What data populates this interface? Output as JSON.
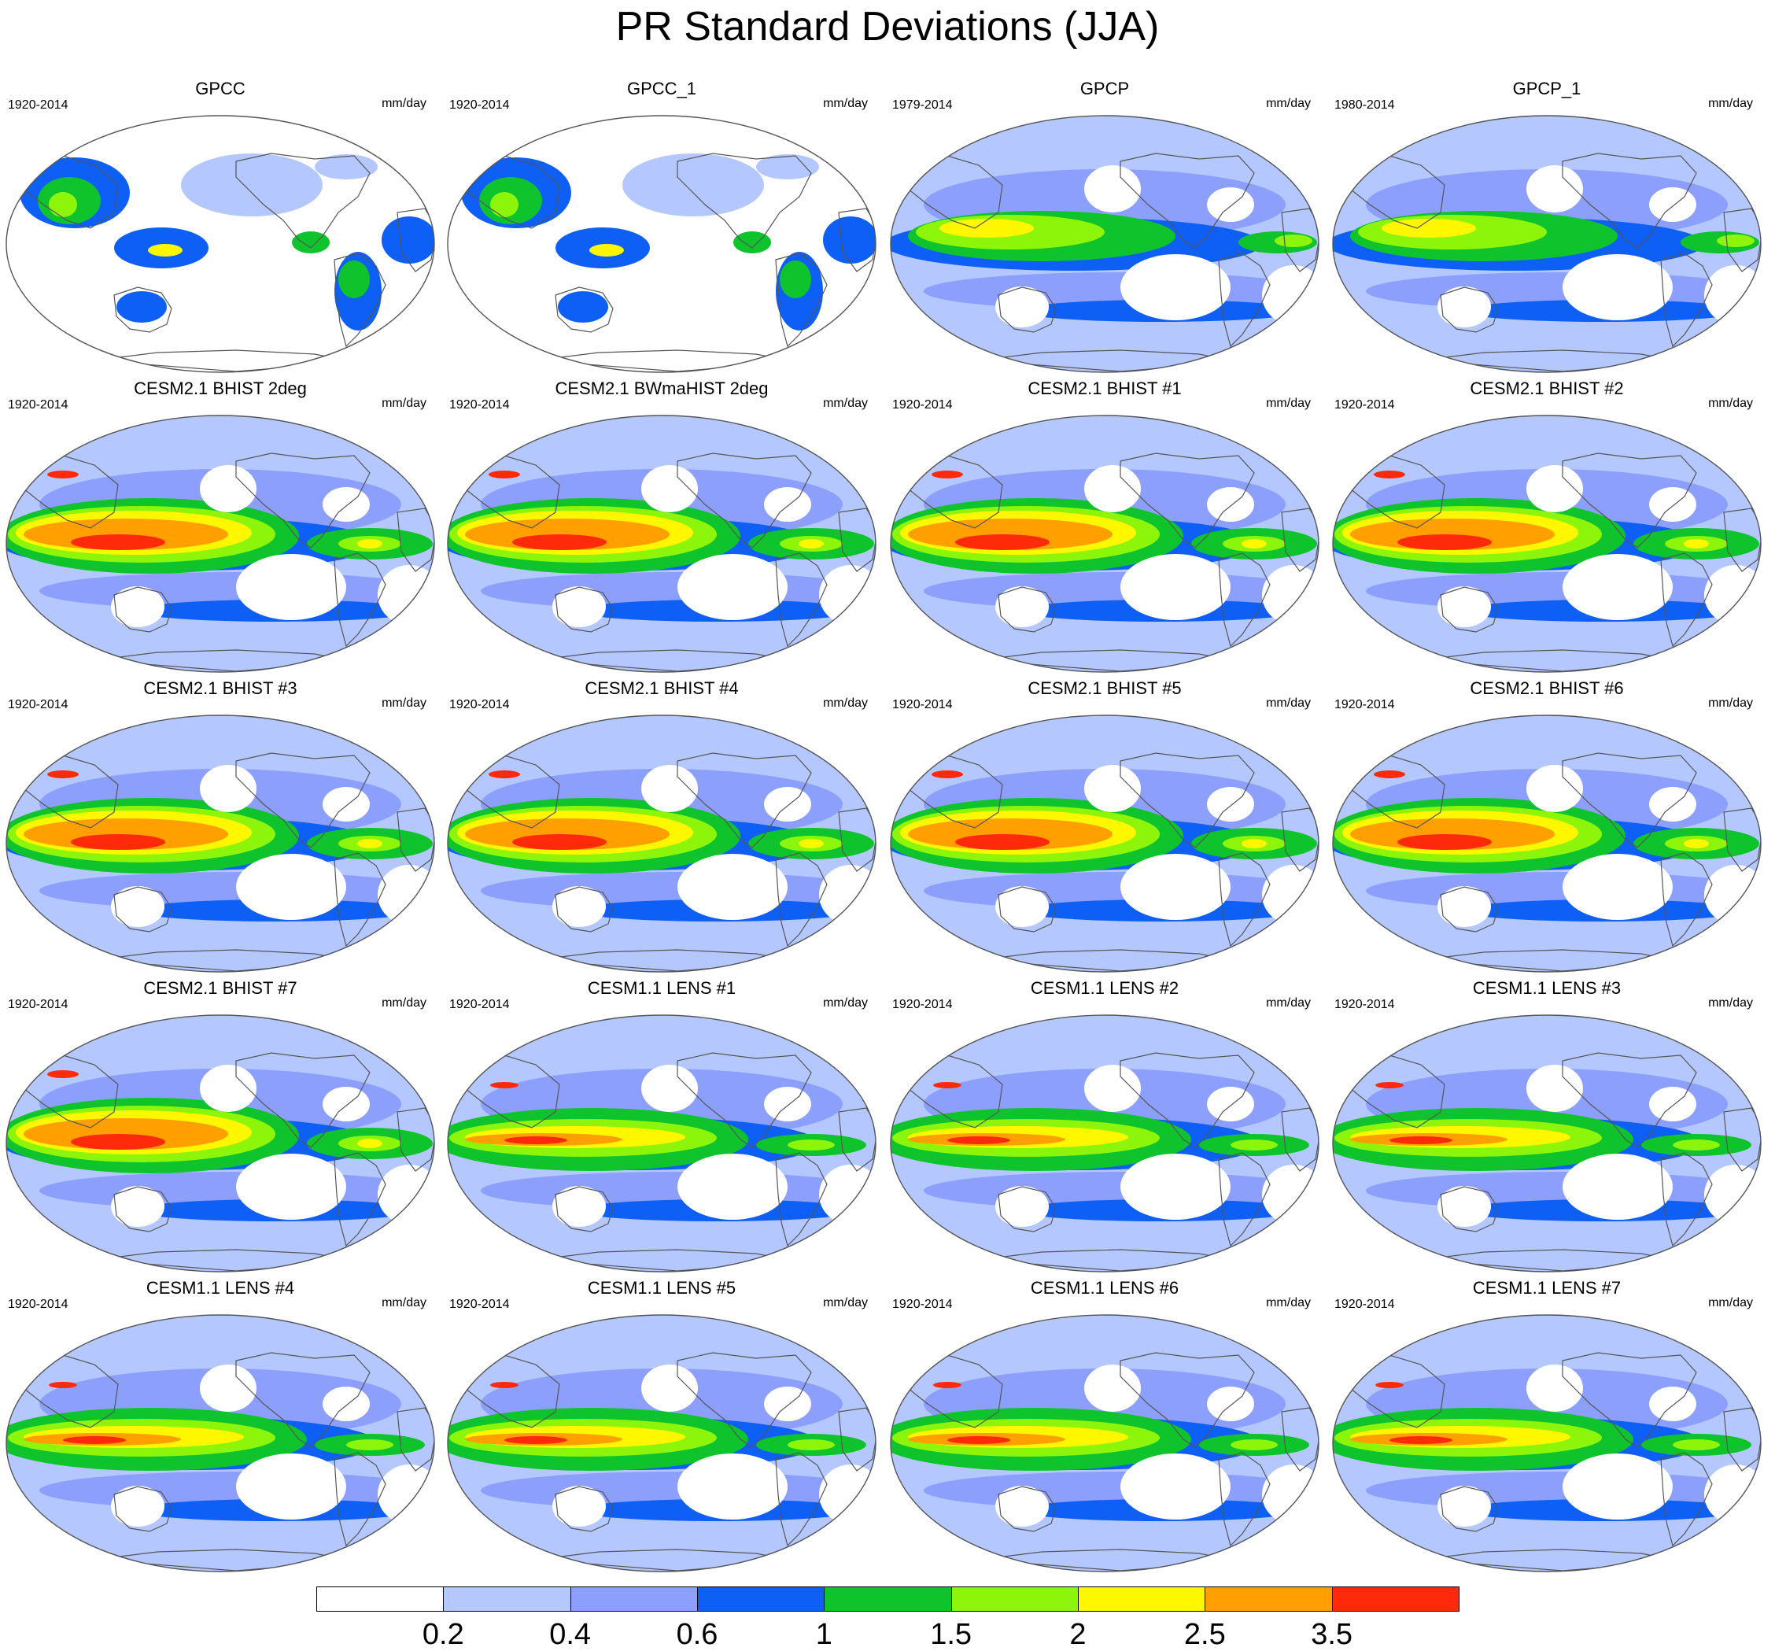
{
  "title": "PR Standard Deviations (JJA)",
  "units": "mm/day",
  "colorbar": {
    "colors": [
      "#ffffff",
      "#b4c8ff",
      "#8c9ffc",
      "#0e5ff5",
      "#0fc32d",
      "#8cf50a",
      "#fff700",
      "#ffa000",
      "#ff2a0a"
    ],
    "labels": [
      "0.2",
      "0.4",
      "0.6",
      "1",
      "1.5",
      "2",
      "2.5",
      "3.5"
    ]
  },
  "panels": [
    {
      "title": "GPCC",
      "period": "1920-2014",
      "kind": "land"
    },
    {
      "title": "GPCC_1",
      "period": "1920-2014",
      "kind": "land"
    },
    {
      "title": "GPCP",
      "period": "1979-2014",
      "kind": "obs"
    },
    {
      "title": "GPCP_1",
      "period": "1980-2014",
      "kind": "obs"
    },
    {
      "title": "CESM2.1 BHIST 2deg",
      "period": "1920-2014",
      "kind": "cesm2"
    },
    {
      "title": "CESM2.1 BWmaHIST 2deg",
      "period": "1920-2014",
      "kind": "cesm2"
    },
    {
      "title": "CESM2.1 BHIST #1",
      "period": "1920-2014",
      "kind": "cesm2"
    },
    {
      "title": "CESM2.1 BHIST #2",
      "period": "1920-2014",
      "kind": "cesm2"
    },
    {
      "title": "CESM2.1 BHIST #3",
      "period": "1920-2014",
      "kind": "cesm2"
    },
    {
      "title": "CESM2.1 BHIST #4",
      "period": "1920-2014",
      "kind": "cesm2"
    },
    {
      "title": "CESM2.1 BHIST #5",
      "period": "1920-2014",
      "kind": "cesm2"
    },
    {
      "title": "CESM2.1 BHIST #6",
      "period": "1920-2014",
      "kind": "cesm2"
    },
    {
      "title": "CESM2.1 BHIST #7",
      "period": "1920-2014",
      "kind": "cesm2"
    },
    {
      "title": "CESM1.1 LENS #1",
      "period": "1920-2014",
      "kind": "lens"
    },
    {
      "title": "CESM1.1 LENS #2",
      "period": "1920-2014",
      "kind": "lens"
    },
    {
      "title": "CESM1.1 LENS #3",
      "period": "1920-2014",
      "kind": "lens"
    },
    {
      "title": "CESM1.1 LENS #4",
      "period": "1920-2014",
      "kind": "lens"
    },
    {
      "title": "CESM1.1 LENS #5",
      "period": "1920-2014",
      "kind": "lens"
    },
    {
      "title": "CESM1.1 LENS #6",
      "period": "1920-2014",
      "kind": "lens"
    },
    {
      "title": "CESM1.1 LENS #7",
      "period": "1920-2014",
      "kind": "lens"
    }
  ]
}
